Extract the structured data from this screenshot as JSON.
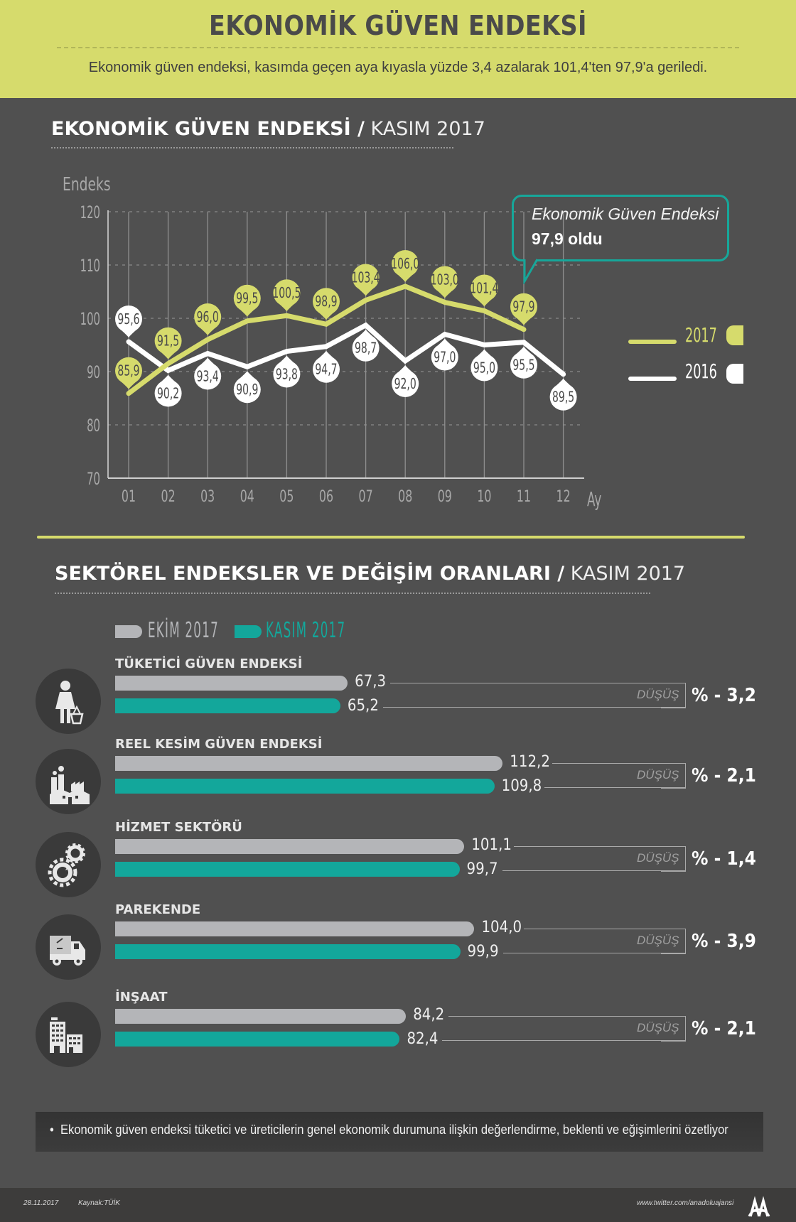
{
  "header": {
    "title": "EKONOMİK GÜVEN ENDEKSİ",
    "subtitle": "Ekonomik güven endeksi, kasımda geçen aya kıyasla yüzde 3,4 azalarak 101,4'ten 97,9'a geriledi."
  },
  "section1": {
    "title_bold": "EKONOMİK GÜVEN ENDEKSİ /",
    "title_light": " KASIM 2017"
  },
  "callout": {
    "line1": "Ekonomik Güven Endeksi",
    "line2": "97,9 oldu"
  },
  "section2": {
    "title_bold": "SEKTÖREL ENDEKSLER VE DEĞİŞİM ORANLARI /",
    "title_light": " KASIM 2017",
    "legend": [
      {
        "label": "EKİM 2017",
        "color": "#b4b5b8"
      },
      {
        "label": "KASIM 2017",
        "color": "#13a79b"
      }
    ]
  },
  "colors": {
    "accent_lime": "#d6db6c",
    "teal": "#13a79b",
    "grey_bar": "#b4b5b8",
    "background": "#505050"
  },
  "chart_data": [
    {
      "type": "line",
      "title": "EKONOMİK GÜVEN ENDEKSİ / KASIM 2017",
      "xlabel": "Ay",
      "ylabel": "Endeks",
      "x": [
        "01",
        "02",
        "03",
        "04",
        "05",
        "06",
        "07",
        "08",
        "09",
        "10",
        "11",
        "12"
      ],
      "ylim": [
        70,
        120
      ],
      "yticks": [
        "70",
        "80",
        "90",
        "100",
        "110",
        "120"
      ],
      "grid": true,
      "legend_position": "right",
      "series": [
        {
          "name": "2017",
          "color": "#d6db6c",
          "values": [
            85.9,
            91.5,
            96.0,
            99.5,
            100.5,
            98.9,
            103.4,
            106.0,
            103.0,
            101.4,
            97.9,
            null
          ],
          "labels": [
            "85,9",
            "91,5",
            "96,0",
            "99,5",
            "100,5",
            "98,9",
            "103,4",
            "106,0",
            "103,0",
            "101,4",
            "97,9",
            null
          ]
        },
        {
          "name": "2016",
          "color": "#ffffff",
          "values": [
            95.6,
            90.2,
            93.4,
            90.9,
            93.8,
            94.7,
            98.7,
            92.0,
            97.0,
            95.0,
            95.5,
            89.5
          ],
          "labels": [
            "95,6",
            "90,2",
            "93,4",
            "90,9",
            "93,8",
            "94,7",
            "98,7",
            "92,0",
            "97,0",
            "95,0",
            "95,5",
            "89,5"
          ]
        }
      ]
    },
    {
      "type": "bar",
      "title": "SEKTÖREL ENDEKSLER VE DEĞİŞİM ORANLARI / KASIM 2017",
      "categories": [
        "TÜKETİCİ GÜVEN ENDEKSİ",
        "REEL KESİM GÜVEN ENDEKSİ",
        "HİZMET SEKTÖRÜ",
        "PAREKENDE",
        "İNŞAAT"
      ],
      "series": [
        {
          "name": "EKİM 2017",
          "values": [
            67.3,
            112.2,
            101.1,
            104.0,
            84.2
          ]
        },
        {
          "name": "KASIM 2017",
          "values": [
            65.2,
            109.8,
            99.7,
            99.9,
            82.4
          ]
        }
      ],
      "xlim": [
        0,
        115
      ]
    }
  ],
  "sectors": [
    {
      "name": "TÜKETİCİ GÜVEN ENDEKSİ",
      "icon": "shopper-icon",
      "ekim": 67.3,
      "ekim_label": "67,3",
      "kasim": 65.2,
      "kasim_label": "65,2",
      "change_label": "DÜŞÜŞ",
      "change": "% - 3,2"
    },
    {
      "name": "REEL KESİM GÜVEN ENDEKSİ",
      "icon": "factory-icon",
      "ekim": 112.2,
      "ekim_label": "112,2",
      "kasim": 109.8,
      "kasim_label": "109,8",
      "change_label": "DÜŞÜŞ",
      "change": "% - 2,1"
    },
    {
      "name": "HİZMET SEKTÖRÜ",
      "icon": "gears-icon",
      "ekim": 101.1,
      "ekim_label": "101,1",
      "kasim": 99.7,
      "kasim_label": "99,7",
      "change_label": "DÜŞÜŞ",
      "change": "% - 1,4"
    },
    {
      "name": "PAREKENDE",
      "icon": "truck-icon",
      "ekim": 104.0,
      "ekim_label": "104,0",
      "kasim": 99.9,
      "kasim_label": "99,9",
      "change_label": "DÜŞÜŞ",
      "change": "% - 3,9"
    },
    {
      "name": "İNŞAAT",
      "icon": "buildings-icon",
      "ekim": 84.2,
      "ekim_label": "84,2",
      "kasim": 82.4,
      "kasim_label": "82,4",
      "change_label": "DÜŞÜŞ",
      "change": "% - 2,1"
    }
  ],
  "note": "Ekonomik güven endeksi tüketici ve üreticilerin genel ekonomik durumuna ilişkin değerlendirme, beklenti ve eğişimlerini özetliyor",
  "footer": {
    "date": "28.11.2017",
    "source": "Kaynak:TÜİK",
    "twitter": "www.twitter.com/anadoluajansi",
    "logo": "AA"
  }
}
